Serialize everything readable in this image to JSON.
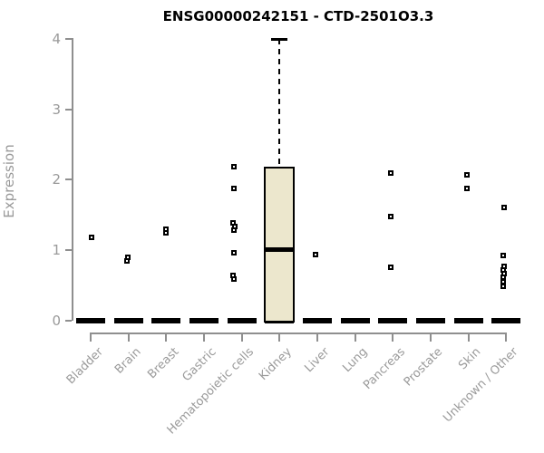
{
  "chart_data": {
    "type": "box",
    "title": "ENSG00000242151 - CTD-2501O3.3",
    "ylabel": "Expression",
    "xlabel": "",
    "ylim": [
      0,
      4
    ],
    "yticks": [
      0,
      1,
      2,
      3,
      4
    ],
    "grid": "off",
    "legend": null,
    "categories": [
      "Bladder",
      "Brain",
      "Breast",
      "Gastric",
      "Hematopoietic cells",
      "Kidney",
      "Liver",
      "Lung",
      "Pancreas",
      "Prostate",
      "Skin",
      "Unknown / Other"
    ],
    "boxes": [
      {
        "category": "Bladder",
        "q1": 0,
        "median": 0,
        "q3": 0,
        "whisker_low": 0,
        "whisker_high": 0,
        "points": [
          {
            "v": 1.18,
            "dx": 1
          }
        ]
      },
      {
        "category": "Brain",
        "q1": 0,
        "median": 0,
        "q3": 0,
        "whisker_low": 0,
        "whisker_high": 0,
        "points": [
          {
            "v": 0.9,
            "dx": -1
          },
          {
            "v": 0.85,
            "dx": -2
          }
        ]
      },
      {
        "category": "Breast",
        "q1": 0,
        "median": 0,
        "q3": 0,
        "whisker_low": 0,
        "whisker_high": 0,
        "points": [
          {
            "v": 1.29,
            "dx": 0
          },
          {
            "v": 1.24,
            "dx": 0
          }
        ]
      },
      {
        "category": "Gastric",
        "q1": 0,
        "median": 0,
        "q3": 0,
        "whisker_low": 0,
        "whisker_high": 0,
        "points": []
      },
      {
        "category": "Hematopoietic cells",
        "q1": 0,
        "median": 0,
        "q3": 0,
        "whisker_low": 0,
        "whisker_high": 0,
        "points": [
          {
            "v": 2.19,
            "dx": -9
          },
          {
            "v": 1.87,
            "dx": -9
          },
          {
            "v": 1.39,
            "dx": -10
          },
          {
            "v": 1.34,
            "dx": -8
          },
          {
            "v": 1.28,
            "dx": -9
          },
          {
            "v": 0.96,
            "dx": -9
          },
          {
            "v": 0.64,
            "dx": -10
          },
          {
            "v": 0.58,
            "dx": -9
          }
        ]
      },
      {
        "category": "Kidney",
        "q1": 0,
        "median": 1.0,
        "q3": 2.19,
        "whisker_low": 0,
        "whisker_high": 4.0,
        "points": []
      },
      {
        "category": "Liver",
        "q1": 0,
        "median": 0,
        "q3": 0,
        "whisker_low": 0,
        "whisker_high": 0,
        "points": [
          {
            "v": 0.93,
            "dx": -2
          }
        ]
      },
      {
        "category": "Lung",
        "q1": 0,
        "median": 0,
        "q3": 0,
        "whisker_low": 0,
        "whisker_high": 0,
        "points": []
      },
      {
        "category": "Pancreas",
        "q1": 0,
        "median": 0,
        "q3": 0,
        "whisker_low": 0,
        "whisker_high": 0,
        "points": [
          {
            "v": 2.09,
            "dx": -2
          },
          {
            "v": 1.47,
            "dx": -2
          },
          {
            "v": 0.76,
            "dx": -2
          }
        ]
      },
      {
        "category": "Prostate",
        "q1": 0,
        "median": 0,
        "q3": 0,
        "whisker_low": 0,
        "whisker_high": 0,
        "points": []
      },
      {
        "category": "Skin",
        "q1": 0,
        "median": 0,
        "q3": 0,
        "whisker_low": 0,
        "whisker_high": 0,
        "points": [
          {
            "v": 2.07,
            "dx": -2
          },
          {
            "v": 1.88,
            "dx": -2
          }
        ]
      },
      {
        "category": "Unknown / Other",
        "q1": 0,
        "median": 0,
        "q3": 0,
        "whisker_low": 0,
        "whisker_high": 0,
        "points": [
          {
            "v": 1.6,
            "dx": -2
          },
          {
            "v": 0.92,
            "dx": -3
          },
          {
            "v": 0.77,
            "dx": -2
          },
          {
            "v": 0.71,
            "dx": -3
          },
          {
            "v": 0.66,
            "dx": -2
          },
          {
            "v": 0.61,
            "dx": -3
          },
          {
            "v": 0.55,
            "dx": -3
          },
          {
            "v": 0.48,
            "dx": -3
          }
        ]
      }
    ],
    "colors": {
      "box_fill": "#ECE7CD",
      "box_border": "#000000",
      "marker": "#000000",
      "axis": "#8F8F8F",
      "label": "#9A9A9A",
      "title": "#000000",
      "background": "#FFFFFF"
    }
  }
}
